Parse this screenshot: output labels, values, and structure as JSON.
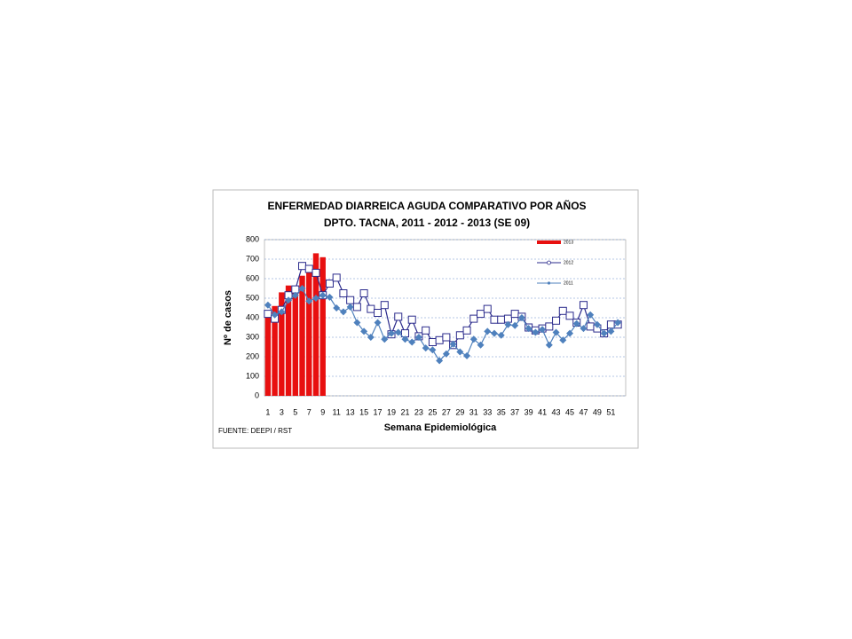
{
  "chart_data": {
    "type": "combo",
    "title": "ENFERMEDAD DIARREICA AGUDA  COMPARATIVO POR  AÑOS",
    "subtitle": "DPTO. TACNA, 2011 - 2012 - 2013 (SE  09)",
    "y_label": "Nº de casos",
    "x_label": "Semana Epidemiológica",
    "source": "FUENTE: DEEPI  / RST",
    "categories": [
      1,
      null,
      3,
      null,
      5,
      null,
      7,
      null,
      9,
      null,
      11,
      null,
      13,
      null,
      15,
      null,
      17,
      null,
      19,
      null,
      21,
      null,
      23,
      null,
      25,
      null,
      27,
      null,
      29,
      null,
      31,
      null,
      33,
      null,
      35,
      null,
      37,
      null,
      39,
      null,
      41,
      null,
      43,
      null,
      45,
      null,
      47,
      null,
      49,
      null,
      51,
      null
    ],
    "ylim": [
      0,
      800
    ],
    "yticks": [
      0,
      100,
      200,
      300,
      400,
      500,
      600,
      700,
      800
    ],
    "grid": true,
    "legend": "upper right",
    "series": [
      {
        "name": "2013",
        "type": "bar",
        "color": "#e81010",
        "values": [
          415,
          460,
          530,
          565,
          545,
          615,
          655,
          730,
          710,
          null,
          null,
          null,
          null,
          null,
          null,
          null,
          null,
          null,
          null,
          null,
          null,
          null,
          null,
          null,
          null,
          null,
          null,
          null,
          null,
          null,
          null,
          null,
          null,
          null,
          null,
          null,
          null,
          null,
          null,
          null,
          null,
          null,
          null,
          null,
          null,
          null,
          null,
          null,
          null,
          null,
          null,
          null
        ]
      },
      {
        "name": "2012",
        "type": "line",
        "marker": "square",
        "color": "#2b2b8c",
        "values": [
          420,
          395,
          440,
          515,
          545,
          665,
          650,
          630,
          515,
          575,
          605,
          525,
          490,
          455,
          525,
          445,
          425,
          465,
          315,
          405,
          320,
          390,
          305,
          335,
          275,
          285,
          300,
          260,
          310,
          335,
          395,
          420,
          445,
          390,
          390,
          395,
          420,
          405,
          350,
          335,
          345,
          355,
          385,
          435,
          410,
          375,
          465,
          355,
          345,
          320,
          365,
          365
        ]
      },
      {
        "name": "2011",
        "type": "line",
        "marker": "diamond",
        "color": "#4f81bd",
        "values": [
          465,
          415,
          430,
          490,
          515,
          550,
          485,
          500,
          515,
          505,
          450,
          430,
          455,
          375,
          330,
          300,
          375,
          290,
          320,
          325,
          290,
          275,
          300,
          245,
          235,
          180,
          215,
          265,
          225,
          205,
          290,
          260,
          330,
          320,
          310,
          365,
          360,
          400,
          345,
          325,
          340,
          260,
          325,
          285,
          320,
          370,
          345,
          415,
          365,
          320,
          330,
          375
        ]
      }
    ]
  }
}
